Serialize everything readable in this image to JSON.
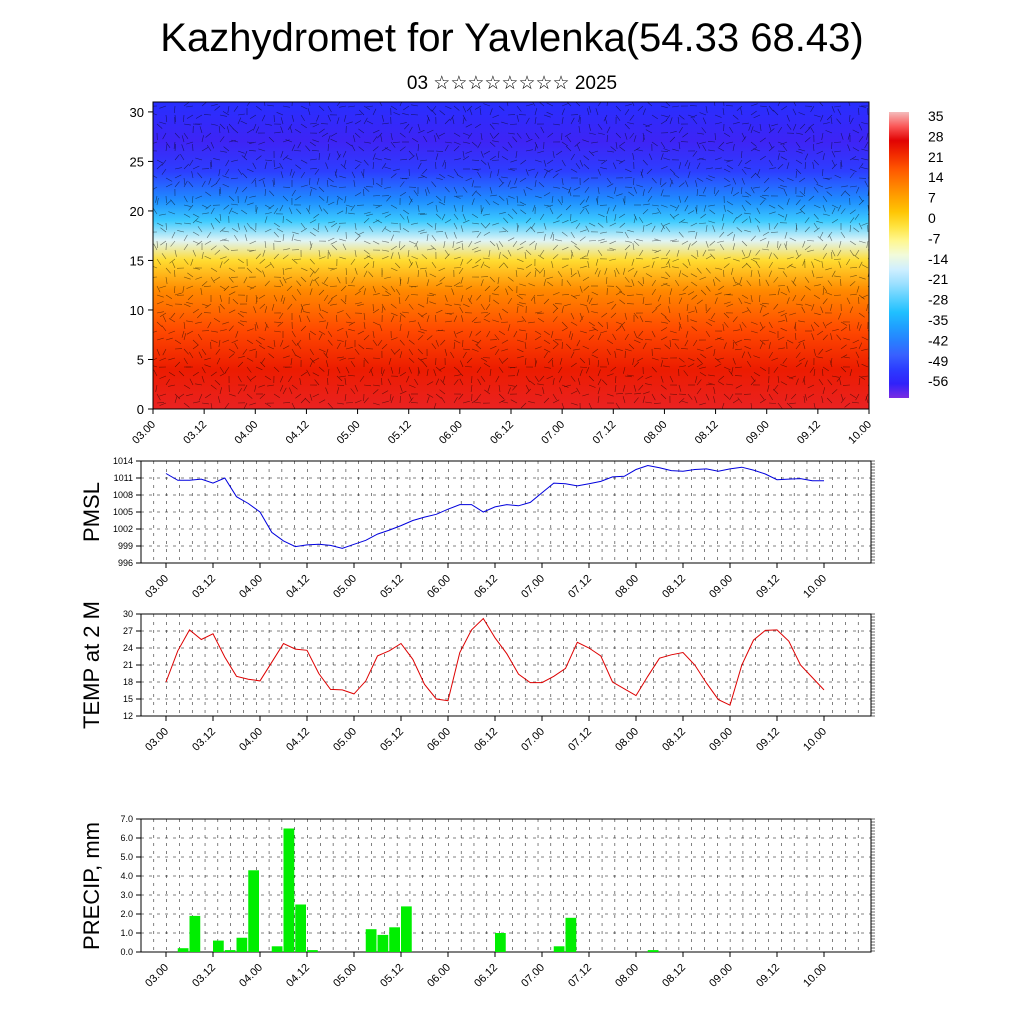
{
  "title": "Kazhydromet for Yavlenka(54.33 68.43)",
  "subtitle": "03 ☆☆☆☆☆☆☆☆ 2025",
  "time_labels": [
    "03.00",
    "03.12",
    "04.00",
    "04.12",
    "05.00",
    "05.12",
    "06.00",
    "06.12",
    "07.00",
    "07.12",
    "08.00",
    "08.12",
    "09.00",
    "09.12",
    "10.00"
  ],
  "colorbar": {
    "labels": [
      "35",
      "28",
      "21",
      "14",
      "7",
      "0",
      "-7",
      "-14",
      "-21",
      "-28",
      "-35",
      "-42",
      "-49",
      "-56"
    ]
  },
  "chart_data": [
    {
      "type": "heatmap",
      "title": "Kazhydromet for Yavlenka(54.33 68.43)",
      "subtitle": "03 ☆☆☆☆☆☆☆☆ 2025",
      "ylim": [
        0,
        31
      ],
      "yticks": [
        0,
        5,
        10,
        15,
        20,
        25,
        30
      ],
      "colorbar_range": [
        -60,
        38
      ],
      "temperature_profile": [
        {
          "level": 0,
          "value": 30
        },
        {
          "level": 4,
          "value": 25
        },
        {
          "level": 8,
          "value": 20
        },
        {
          "level": 12,
          "value": 12
        },
        {
          "level": 15,
          "value": 0
        },
        {
          "level": 17,
          "value": -14
        },
        {
          "level": 19,
          "value": -28
        },
        {
          "level": 21,
          "value": -38
        },
        {
          "level": 24,
          "value": -50
        },
        {
          "level": 27,
          "value": -56
        },
        {
          "level": 31,
          "value": -52
        }
      ],
      "overlay": "wind barbs"
    },
    {
      "type": "line",
      "ylabel": "PMSL",
      "ylim": [
        996,
        1014
      ],
      "yticks": [
        996,
        999,
        1002,
        1005,
        1008,
        1011,
        1014
      ],
      "values": [
        1011.8,
        1010.6,
        1010.6,
        1010.8,
        1010.1,
        1011.0,
        1007.7,
        1006.5,
        1005.0,
        1001.4,
        999.9,
        998.9,
        999.2,
        999.3,
        999.1,
        998.6,
        999.3,
        1000.0,
        1001.1,
        1001.8,
        1002.6,
        1003.5,
        1004.1,
        1004.6,
        1005.5,
        1006.3,
        1006.3,
        1005.0,
        1005.9,
        1006.3,
        1006.1,
        1006.7,
        1008.4,
        1010.1,
        1010.0,
        1009.6,
        1010.0,
        1010.4,
        1011.2,
        1011.3,
        1012.5,
        1013.2,
        1012.8,
        1012.3,
        1012.2,
        1012.5,
        1012.6,
        1012.2,
        1012.6,
        1012.9,
        1012.4,
        1011.7,
        1010.7,
        1010.8,
        1010.9,
        1010.5,
        1010.5
      ]
    },
    {
      "type": "line",
      "ylabel": "TEMP at 2 M",
      "ylim": [
        12,
        30
      ],
      "yticks": [
        12,
        15,
        18,
        21,
        24,
        27,
        30
      ],
      "values": [
        18.0,
        23.5,
        27.2,
        25.5,
        26.5,
        22.4,
        19.0,
        18.5,
        18.2,
        21.5,
        24.8,
        23.8,
        23.6,
        19.5,
        16.7,
        16.6,
        15.9,
        18.2,
        22.6,
        23.5,
        24.8,
        22.0,
        17.6,
        15.0,
        14.7,
        23.2,
        27.2,
        29.2,
        25.8,
        23.0,
        19.4,
        17.9,
        17.9,
        19.0,
        20.4,
        25.0,
        24.0,
        22.6,
        18.0,
        16.8,
        15.6,
        19.0,
        22.2,
        22.8,
        23.2,
        21.0,
        17.8,
        14.9,
        13.9,
        21.0,
        25.4,
        27.1,
        27.2,
        25.2,
        21.0,
        18.8,
        16.6
      ]
    },
    {
      "type": "bar",
      "ylabel": "PRECIP, mm",
      "ylim": [
        0,
        7
      ],
      "yticks": [
        0.0,
        1.0,
        2.0,
        3.0,
        4.0,
        5.0,
        6.0,
        7.0
      ],
      "values": [
        0.0,
        0.2,
        1.9,
        0.0,
        0.6,
        0.1,
        0.75,
        4.3,
        0.0,
        0.3,
        6.5,
        2.5,
        0.1,
        0.0,
        0.0,
        0.0,
        0.0,
        1.2,
        0.9,
        1.3,
        2.4,
        0.0,
        0.0,
        0.0,
        0.0,
        0.0,
        0.0,
        0.0,
        1.0,
        0.0,
        0.0,
        0.0,
        0.0,
        0.3,
        1.8,
        0.0,
        0.0,
        0.0,
        0.0,
        0.0,
        0.0,
        0.1,
        0.0,
        0.0,
        0.0,
        0.0,
        0.0,
        0.0,
        0.0,
        0.0,
        0.0,
        0.0,
        0.0,
        0.0,
        0.0,
        0.0
      ]
    }
  ]
}
